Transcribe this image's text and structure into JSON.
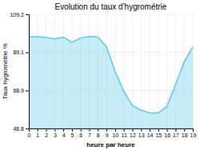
{
  "chart_data": {
    "type": "area",
    "title": "Evolution du taux d'hygrométrie",
    "x_label": "heure par heure",
    "y_label": "Taux hygrométrie %",
    "x": [
      0,
      1,
      2,
      3,
      4,
      5,
      6,
      7,
      8,
      9,
      10,
      11,
      12,
      13,
      14,
      15,
      16,
      17,
      18,
      19
    ],
    "values": [
      97.5,
      97.4,
      97.0,
      96.2,
      97.1,
      94.5,
      96.8,
      97.5,
      97.2,
      92.0,
      79.0,
      68.5,
      61.0,
      58.5,
      57.0,
      57.0,
      60.5,
      72.0,
      84.0,
      92.0
    ],
    "color": "#5bc8e8",
    "xlim": [
      0,
      19
    ],
    "xticks": [
      0,
      1,
      2,
      3,
      4,
      5,
      6,
      7,
      8,
      9,
      10,
      11,
      12,
      13,
      14,
      15,
      16,
      17,
      18,
      19
    ],
    "ylim": [
      48.8,
      109.2
    ],
    "yticks": [
      48.8,
      68.9,
      89.1,
      109.2
    ],
    "grid": true
  }
}
